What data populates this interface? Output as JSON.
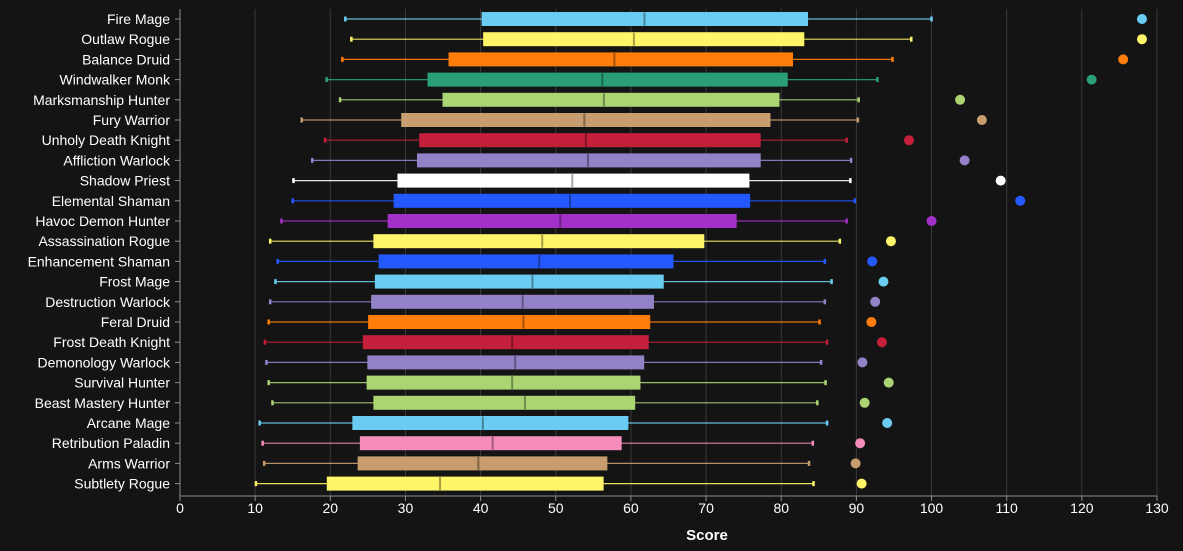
{
  "chart_data": {
    "type": "box",
    "xlabel": "Score",
    "xlim": [
      0,
      130
    ],
    "x_ticks": [
      "0",
      "10",
      "20",
      "30",
      "40",
      "50",
      "60",
      "70",
      "80",
      "90",
      "100",
      "110",
      "120",
      "130"
    ],
    "grid": "vertical",
    "categories": [
      "Fire Mage",
      "Outlaw Rogue",
      "Balance Druid",
      "Windwalker Monk",
      "Marksmanship Hunter",
      "Fury Warrior",
      "Unholy Death Knight",
      "Affliction Warlock",
      "Shadow Priest",
      "Elemental Shaman",
      "Havoc Demon Hunter",
      "Assassination Rogue",
      "Enhancement Shaman",
      "Frost Mage",
      "Destruction Warlock",
      "Feral Druid",
      "Frost Death Knight",
      "Demonology Warlock",
      "Survival Hunter",
      "Beast Mastery Hunter",
      "Arcane Mage",
      "Retribution Paladin",
      "Arms Warrior",
      "Subtlety Rogue"
    ],
    "boxes": [
      {
        "min": 22.0,
        "q1": 40.2,
        "median": 61.8,
        "q3": 83.5,
        "max": 100.0,
        "outlier": 128.0,
        "color": "#69ccf0"
      },
      {
        "min": 22.8,
        "q1": 40.4,
        "median": 60.4,
        "q3": 83.0,
        "max": 97.3,
        "outlier": 128.0,
        "color": "#fff569"
      },
      {
        "min": 21.6,
        "q1": 35.8,
        "median": 57.8,
        "q3": 81.5,
        "max": 94.8,
        "outlier": 125.5,
        "color": "#ff7d0a"
      },
      {
        "min": 19.5,
        "q1": 33.0,
        "median": 56.2,
        "q3": 80.8,
        "max": 92.8,
        "outlier": 121.3,
        "color": "#2a9f76"
      },
      {
        "min": 21.3,
        "q1": 35.0,
        "median": 56.4,
        "q3": 79.7,
        "max": 90.3,
        "outlier": 103.8,
        "color": "#abd473"
      },
      {
        "min": 16.2,
        "q1": 29.5,
        "median": 53.8,
        "q3": 78.5,
        "max": 90.2,
        "outlier": 106.7,
        "color": "#c79c6e"
      },
      {
        "min": 19.3,
        "q1": 31.9,
        "median": 54.0,
        "q3": 77.2,
        "max": 88.7,
        "outlier": 97.0,
        "color": "#c41f3b"
      },
      {
        "min": 17.6,
        "q1": 31.6,
        "median": 54.3,
        "q3": 77.2,
        "max": 89.3,
        "outlier": 104.4,
        "color": "#9482c9"
      },
      {
        "min": 15.1,
        "q1": 29.0,
        "median": 52.2,
        "q3": 75.7,
        "max": 89.2,
        "outlier": 109.2,
        "color": "#ffffff"
      },
      {
        "min": 15.0,
        "q1": 28.5,
        "median": 51.9,
        "q3": 75.8,
        "max": 89.8,
        "outlier": 111.8,
        "color": "#2459ff"
      },
      {
        "min": 13.5,
        "q1": 27.7,
        "median": 50.6,
        "q3": 74.0,
        "max": 88.7,
        "outlier": 100.0,
        "color": "#a330c9"
      },
      {
        "min": 12.0,
        "q1": 25.8,
        "median": 48.2,
        "q3": 69.7,
        "max": 87.8,
        "outlier": 94.6,
        "color": "#fff569"
      },
      {
        "min": 13.0,
        "q1": 26.5,
        "median": 47.8,
        "q3": 65.6,
        "max": 85.8,
        "outlier": 92.1,
        "color": "#2459ff"
      },
      {
        "min": 12.7,
        "q1": 26.0,
        "median": 46.9,
        "q3": 64.3,
        "max": 86.7,
        "outlier": 93.6,
        "color": "#69ccf0"
      },
      {
        "min": 12.0,
        "q1": 25.5,
        "median": 45.6,
        "q3": 63.0,
        "max": 85.8,
        "outlier": 92.5,
        "color": "#9482c9"
      },
      {
        "min": 11.8,
        "q1": 25.1,
        "median": 45.7,
        "q3": 62.5,
        "max": 85.1,
        "outlier": 92.0,
        "color": "#ff7d0a"
      },
      {
        "min": 11.3,
        "q1": 24.4,
        "median": 44.2,
        "q3": 62.3,
        "max": 86.1,
        "outlier": 93.4,
        "color": "#c41f3b"
      },
      {
        "min": 11.5,
        "q1": 25.0,
        "median": 44.6,
        "q3": 61.7,
        "max": 85.3,
        "outlier": 90.8,
        "color": "#9482c9"
      },
      {
        "min": 11.8,
        "q1": 24.9,
        "median": 44.2,
        "q3": 61.2,
        "max": 85.9,
        "outlier": 94.3,
        "color": "#abd473"
      },
      {
        "min": 12.3,
        "q1": 25.8,
        "median": 45.9,
        "q3": 60.5,
        "max": 84.8,
        "outlier": 91.1,
        "color": "#abd473"
      },
      {
        "min": 10.6,
        "q1": 23.0,
        "median": 40.3,
        "q3": 59.6,
        "max": 86.1,
        "outlier": 94.1,
        "color": "#69ccf0"
      },
      {
        "min": 11.0,
        "q1": 24.0,
        "median": 41.6,
        "q3": 58.7,
        "max": 84.2,
        "outlier": 90.5,
        "color": "#f58cba"
      },
      {
        "min": 11.2,
        "q1": 23.7,
        "median": 39.7,
        "q3": 56.8,
        "max": 83.7,
        "outlier": 89.9,
        "color": "#c79c6e"
      },
      {
        "min": 10.1,
        "q1": 19.6,
        "median": 34.6,
        "q3": 56.3,
        "max": 84.3,
        "outlier": 90.7,
        "color": "#fff569"
      }
    ],
    "colors": {
      "background": "#141414",
      "grid": "#3a3a3a",
      "axis": "#8c8c8c",
      "text": "#ffffff"
    }
  }
}
